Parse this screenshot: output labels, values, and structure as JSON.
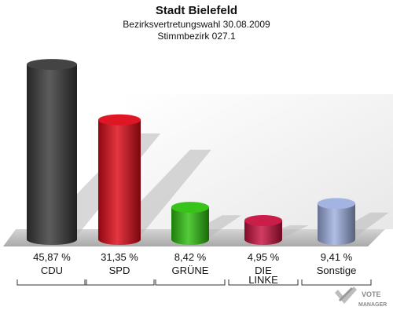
{
  "brand": {
    "line1": "VOTE",
    "line2": "MANAGER"
  },
  "chart_data": {
    "type": "bar",
    "title": "Stadt Bielefeld",
    "subtitle": "Bezirksvertretungswahl 30.08.2009",
    "subtitle2": "Stimmbezirk 027.1",
    "categories": [
      "CDU",
      "SPD",
      "GRÜNE",
      "DIE LINKE",
      "Sonstige"
    ],
    "category_lines": [
      [
        "CDU"
      ],
      [
        "SPD"
      ],
      [
        "GRÜNE"
      ],
      [
        "DIE",
        "LINKE"
      ],
      [
        "Sonstige"
      ]
    ],
    "values": [
      45.87,
      31.35,
      8.42,
      4.95,
      9.41
    ],
    "value_labels": [
      "45,87 %",
      "31,35 %",
      "8,42 %",
      "4,95 %",
      "9,41 %"
    ],
    "colors": [
      "#3a3a3a",
      "#dd0a17",
      "#2ec00f",
      "#c8113f",
      "#9fb0e0"
    ],
    "ylim": [
      0,
      50
    ],
    "grid": false,
    "legend": "none"
  }
}
